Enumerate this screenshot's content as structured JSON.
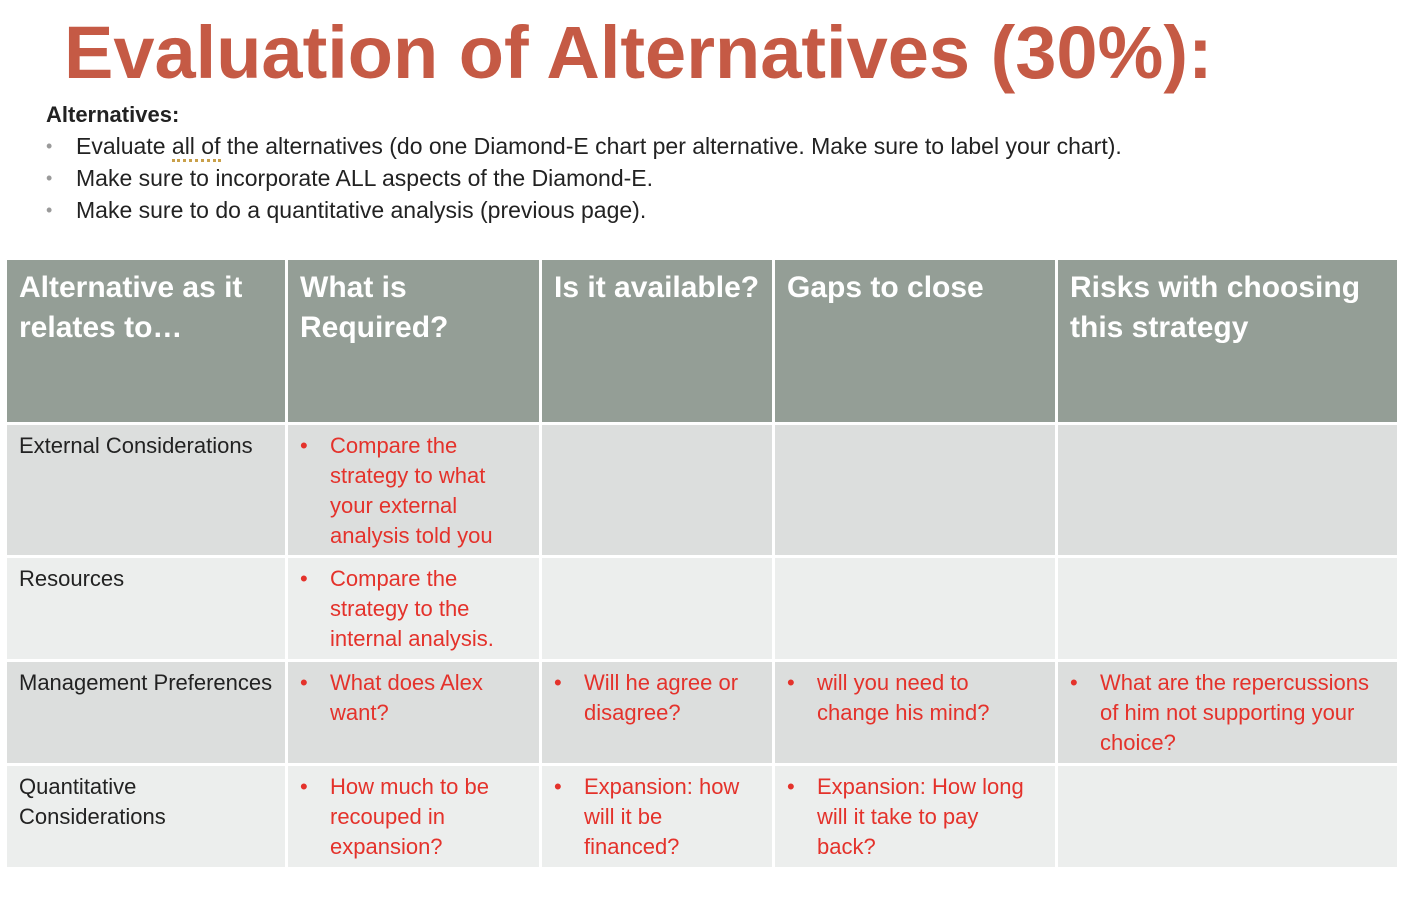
{
  "title": "Evaluation of Alternatives (30%):",
  "intro": {
    "heading": "Alternatives:",
    "bullet_icon": "bullet-dot",
    "bullets": [
      {
        "before": "Evaluate ",
        "underlined": "all of",
        "after": " the alternatives (do one Diamond-E chart per alternative. Make sure to label your chart)."
      },
      {
        "text": "Make sure to incorporate ALL aspects of the Diamond-E."
      },
      {
        "text": "Make sure to do a quantitative analysis (previous page)."
      }
    ]
  },
  "colors": {
    "title": "#c55a45",
    "header_bg": "#949e96",
    "row_odd_bg": "#dcdedd",
    "row_even_bg": "#eceeed",
    "red_text": "#e4322b"
  },
  "table": {
    "headers": [
      "Alternative as it relates to…",
      "What is Required?",
      "Is it available?",
      "Gaps to close",
      "Risks with choosing this strategy"
    ],
    "rows": [
      {
        "label": "External Considerations",
        "required": "Compare the strategy to what your external analysis told you",
        "available": "",
        "gaps": "",
        "risks": ""
      },
      {
        "label": "Resources",
        "required": "Compare the strategy to the internal analysis.",
        "available": "",
        "gaps": "",
        "risks": ""
      },
      {
        "label": "Management Preferences",
        "required": "What does Alex want?",
        "available": "Will he agree or disagree?",
        "gaps": "will you need to change his mind?",
        "risks": "What are the repercussions of him not supporting your choice?"
      },
      {
        "label": "Quantitative Considerations",
        "required": "How much to be recouped in expansion?",
        "available": "Expansion: how will it be financed?",
        "gaps": "Expansion: How long will it take to pay back?",
        "risks": ""
      }
    ]
  },
  "bullet_glyph": "•"
}
